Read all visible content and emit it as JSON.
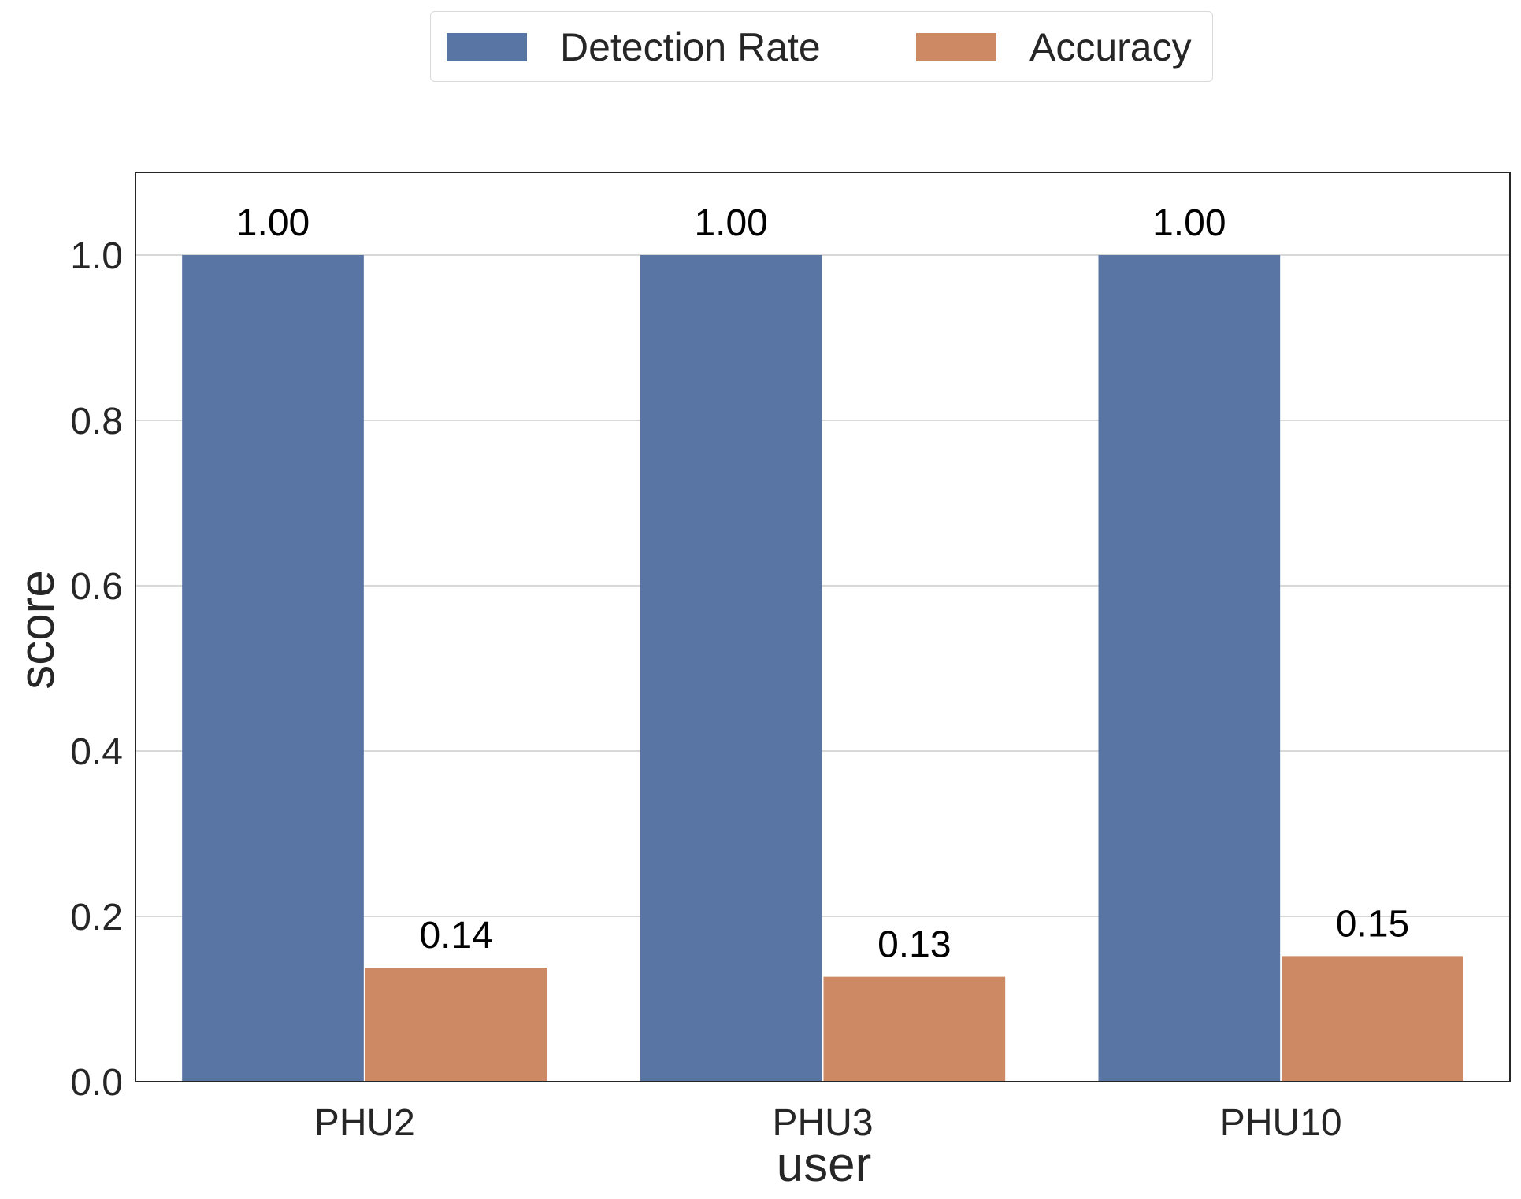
{
  "chart_data": {
    "type": "bar",
    "categories": [
      "PHU2",
      "PHU3",
      "PHU10"
    ],
    "series": [
      {
        "name": "Detection Rate",
        "values": [
          1.0,
          1.0,
          1.0
        ],
        "labels": [
          "1.00",
          "1.00",
          "1.00"
        ],
        "color": "#5975a4"
      },
      {
        "name": "Accuracy",
        "values": [
          0.138,
          0.127,
          0.152
        ],
        "labels": [
          "0.14",
          "0.13",
          "0.15"
        ],
        "color": "#cc8963"
      }
    ],
    "title": "",
    "xlabel": "user",
    "ylabel": "score",
    "ylim": [
      0,
      1.1
    ],
    "yticks": [
      0.0,
      0.2,
      0.4,
      0.6,
      0.8,
      1.0
    ],
    "ytick_labels": [
      "0.0",
      "0.2",
      "0.4",
      "0.6",
      "0.8",
      "1.0"
    ],
    "grid": "horizontal",
    "legend_position": "top-center"
  }
}
